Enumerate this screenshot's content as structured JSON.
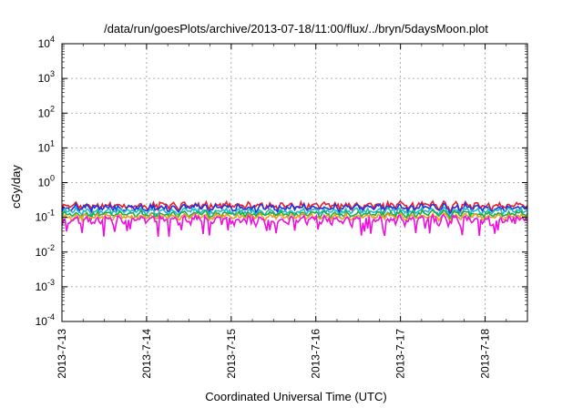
{
  "chart_data": {
    "type": "line",
    "title": "/data/run/goesPlots/archive/2013-07-18/11:00/flux/../bryn/5daysMoon.plot",
    "xlabel": "Coordinated Universal Time (UTC)",
    "ylabel": "cGy/day",
    "y_scale": "log",
    "ylim": [
      0.0001,
      10000
    ],
    "y_ticks": [
      {
        "base": "10",
        "exp": "4",
        "value": 10000
      },
      {
        "base": "10",
        "exp": "3",
        "value": 1000
      },
      {
        "base": "10",
        "exp": "2",
        "value": 100
      },
      {
        "base": "10",
        "exp": "1",
        "value": 10
      },
      {
        "base": "10",
        "exp": "0",
        "value": 1
      },
      {
        "base": "10",
        "exp": "-1",
        "value": 0.1
      },
      {
        "base": "10",
        "exp": "-2",
        "value": 0.01
      },
      {
        "base": "10",
        "exp": "-3",
        "value": 0.001
      },
      {
        "base": "10",
        "exp": "-4",
        "value": 0.0001
      }
    ],
    "xlim": [
      "2013-07-13",
      "2013-07-18T12:00"
    ],
    "x_ticks": [
      "2013-7-13",
      "2013-7-14",
      "2013-7-15",
      "2013-7-16",
      "2013-7-17",
      "2013-7-18"
    ],
    "grid": true,
    "series": [
      {
        "color": "#e8202a",
        "level": 0.22,
        "spread": 0.35
      },
      {
        "color": "#2233dd",
        "level": 0.19,
        "spread": 0.35
      },
      {
        "color": "#22bbcc",
        "level": 0.15,
        "spread": 0.32
      },
      {
        "color": "#22aa44",
        "level": 0.125,
        "spread": 0.3
      },
      {
        "color": "#e8a020",
        "level": 0.105,
        "spread": 0.3
      },
      {
        "color": "#ee10dd",
        "level": 0.085,
        "spread": 0.45
      }
    ]
  }
}
